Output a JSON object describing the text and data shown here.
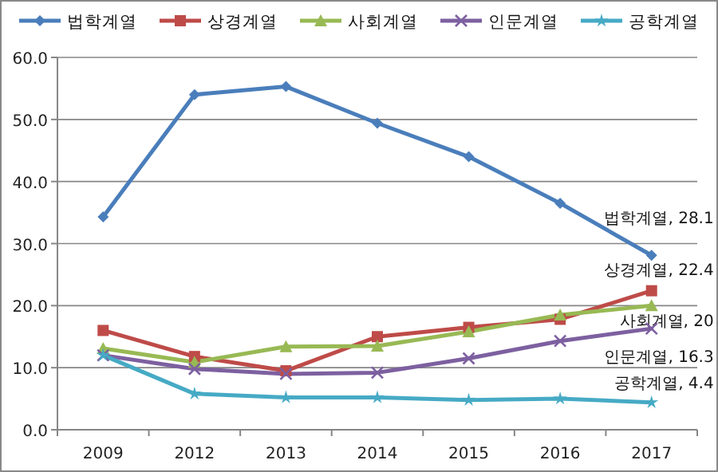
{
  "chart_data": {
    "type": "line",
    "categories": [
      "2009",
      "2012",
      "2013",
      "2014",
      "2015",
      "2016",
      "2017"
    ],
    "series": [
      {
        "name": "법학계열",
        "color": "#4a7ebb",
        "marker": "diamond",
        "values": [
          34.3,
          54.0,
          55.3,
          49.4,
          44.0,
          36.5,
          28.1
        ]
      },
      {
        "name": "상경계열",
        "color": "#be4b48",
        "marker": "square",
        "values": [
          16.0,
          11.8,
          9.5,
          15.0,
          16.5,
          17.8,
          22.4
        ]
      },
      {
        "name": "사회계열",
        "color": "#98b954",
        "marker": "triangle",
        "values": [
          13.1,
          10.9,
          13.4,
          13.5,
          15.8,
          18.5,
          20
        ]
      },
      {
        "name": "인문계열",
        "color": "#7d60a0",
        "marker": "cross",
        "values": [
          12.0,
          9.8,
          9.0,
          9.2,
          11.5,
          14.3,
          16.3
        ]
      },
      {
        "name": "공학계열",
        "color": "#46aac5",
        "marker": "star",
        "values": [
          12.0,
          5.8,
          5.2,
          5.2,
          4.8,
          5.0,
          4.4
        ]
      }
    ],
    "ylim": [
      0,
      60
    ],
    "yticks": [
      {
        "value": 0,
        "label": "0.0"
      },
      {
        "value": 10,
        "label": "10.0"
      },
      {
        "value": 20,
        "label": "20.0"
      },
      {
        "value": 30,
        "label": "30.0"
      },
      {
        "value": 40,
        "label": "40.0"
      },
      {
        "value": 50,
        "label": "50.0"
      },
      {
        "value": 60,
        "label": "60.0"
      }
    ],
    "grid": "y",
    "legend": "top",
    "annotations": [
      {
        "text": "법학계열, 28.1",
        "x": "2017",
        "y": 28.1
      },
      {
        "text": "상경계열, 22.4",
        "x": "2017",
        "y": 22.4
      },
      {
        "text": "사회계열, 20",
        "x": "2017",
        "y": 20
      },
      {
        "text": "인문계열, 16.3",
        "x": "2017",
        "y": 16.3
      },
      {
        "text": "공학계열, 4.4",
        "x": "2017",
        "y": 4.4
      }
    ]
  }
}
